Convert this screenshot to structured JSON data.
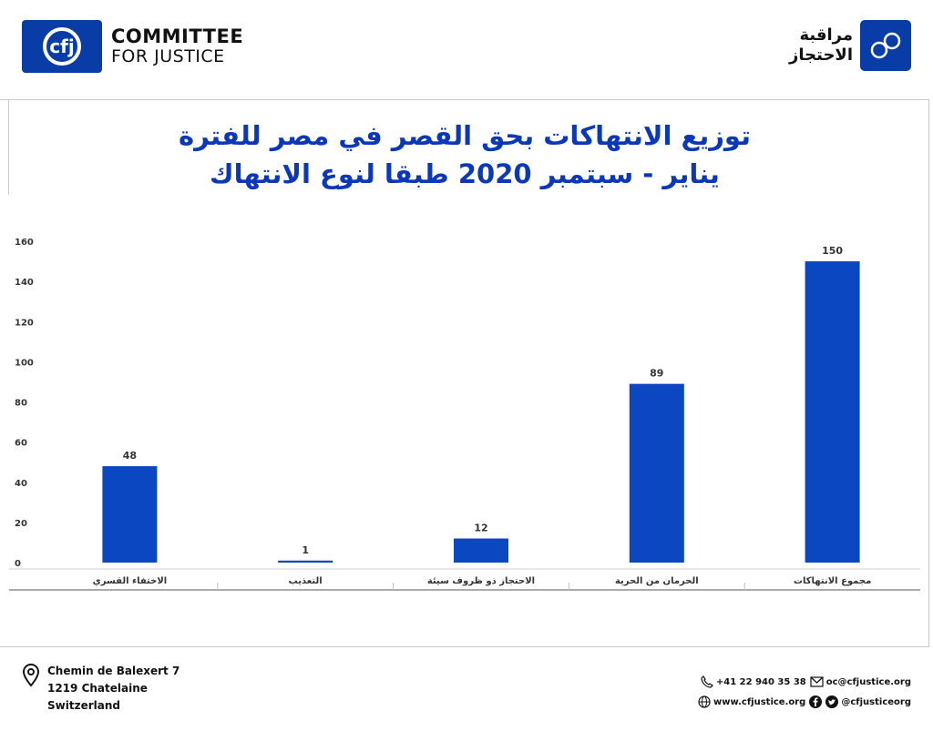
{
  "brand": {
    "line1": "COMMITTEE",
    "line2": "FOR JUSTICE",
    "mark_text": "cfj"
  },
  "monitor": {
    "line1": "مراقبة",
    "line2": "الاحتجاز"
  },
  "colors": {
    "brand_blue": "#0a3ca8",
    "title_blue": "#0b38b8",
    "bar_blue": "#0a47c0"
  },
  "chart_data": {
    "type": "bar",
    "title": "توزيع الانتهاكات بحق القصر في مصر للفترة يناير - سبتمبر 2020 طبقا لنوع الانتهاك",
    "title_lines": [
      "توزيع الانتهاكات بحق القصر في مصر للفترة",
      "يناير - سبتمبر 2020 طبقا لنوع الانتهاك"
    ],
    "categories": [
      "الاختفاء القسري",
      "التعذيب",
      "الاحتجاز ذو ظروف سيئة",
      "الحرمان من الحرية",
      "مجموع الانتهاكات"
    ],
    "values": [
      48,
      1,
      12,
      89,
      150
    ],
    "ylim": [
      0,
      160
    ],
    "yticks": [
      0,
      20,
      40,
      60,
      80,
      100,
      120,
      140,
      160
    ],
    "xlabel": "",
    "ylabel": "",
    "grid": false,
    "data_labels": true
  },
  "footer": {
    "address": [
      "Chemin de Balexert 7",
      "1219 Chatelaine",
      "Switzerland"
    ],
    "phone": "+41 22 940 35 38",
    "email": "oc@cfjustice.org",
    "website": "www.cfjustice.org",
    "social": "@cfjusticeorg",
    "icons": [
      "location-pin-icon",
      "phone-icon",
      "mail-icon",
      "globe-icon",
      "facebook-icon",
      "twitter-icon"
    ]
  }
}
